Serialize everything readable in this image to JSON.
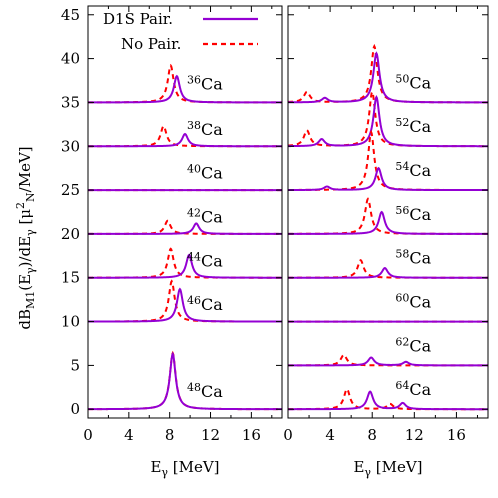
{
  "chart_data": [
    {
      "type": "line",
      "panel": "left",
      "xlabel_main": "E",
      "xlabel_sub": "γ",
      "xlabel_unit": " [MeV]",
      "ylabel": "dB_M1(E_γ)/dE_γ  [μ²_N/MeV]",
      "xlim": [
        0,
        19
      ],
      "ylim": [
        -1,
        46
      ],
      "x_ticks": [
        0,
        4,
        8,
        12,
        16
      ],
      "y_ticks": [
        0,
        5,
        10,
        15,
        20,
        25,
        30,
        35,
        40,
        45
      ],
      "legend": {
        "placement": "top-center",
        "entries": [
          "D1S Pair.",
          "No Pair."
        ]
      },
      "series_colors": {
        "pair": "#9400d3",
        "nopair": "#ff0000"
      },
      "isotopes": [
        {
          "mass": "36",
          "element": "Ca",
          "offset": 35,
          "label_pos": [
            9.7,
            36.5
          ],
          "pair_peaks": [
            [
              8.7,
              3.0
            ]
          ],
          "nopair_peaks": [
            [
              8.1,
              4.2
            ]
          ]
        },
        {
          "mass": "38",
          "element": "Ca",
          "offset": 30,
          "label_pos": [
            9.7,
            31.3
          ],
          "pair_peaks": [
            [
              9.5,
              1.4
            ]
          ],
          "nopair_peaks": [
            [
              7.4,
              2.3
            ]
          ]
        },
        {
          "mass": "40",
          "element": "Ca",
          "offset": 25,
          "label_pos": [
            9.7,
            26.3
          ],
          "pair_peaks": [],
          "nopair_peaks": []
        },
        {
          "mass": "42",
          "element": "Ca",
          "offset": 20,
          "label_pos": [
            9.7,
            21.3
          ],
          "pair_peaks": [
            [
              10.6,
              1.2
            ]
          ],
          "nopair_peaks": [
            [
              7.8,
              1.5
            ]
          ]
        },
        {
          "mass": "44",
          "element": "Ca",
          "offset": 15,
          "label_pos": [
            9.7,
            16.3
          ],
          "pair_peaks": [
            [
              9.9,
              2.6
            ]
          ],
          "nopair_peaks": [
            [
              8.1,
              3.3
            ]
          ]
        },
        {
          "mass": "46",
          "element": "Ca",
          "offset": 10,
          "label_pos": [
            9.7,
            11.3
          ],
          "pair_peaks": [
            [
              9.0,
              3.7
            ]
          ],
          "nopair_peaks": [
            [
              8.2,
              4.6
            ]
          ]
        },
        {
          "mass": "48",
          "element": "Ca",
          "offset": 0,
          "label_pos": [
            9.7,
            1.4
          ],
          "pair_peaks": [
            [
              8.3,
              6.3
            ]
          ],
          "nopair_peaks": [
            [
              8.3,
              6.4
            ]
          ]
        }
      ]
    },
    {
      "type": "line",
      "panel": "right",
      "xlabel_main": "E",
      "xlabel_sub": "γ",
      "xlabel_unit": " [MeV]",
      "xlim": [
        0,
        19
      ],
      "ylim": [
        -1,
        46
      ],
      "x_ticks": [
        0,
        4,
        8,
        12,
        16
      ],
      "series_colors": {
        "pair": "#9400d3",
        "nopair": "#ff0000"
      },
      "isotopes": [
        {
          "mass": "50",
          "element": "Ca",
          "offset": 35,
          "label_pos": [
            10.2,
            36.6
          ],
          "pair_peaks": [
            [
              8.4,
              5.6
            ],
            [
              3.5,
              0.5
            ]
          ],
          "nopair_peaks": [
            [
              8.2,
              6.4
            ],
            [
              1.8,
              1.2
            ]
          ]
        },
        {
          "mass": "52",
          "element": "Ca",
          "offset": 30,
          "label_pos": [
            10.2,
            31.6
          ],
          "pair_peaks": [
            [
              8.4,
              5.6
            ],
            [
              3.2,
              0.8
            ]
          ],
          "nopair_peaks": [
            [
              8.0,
              6.2
            ],
            [
              1.8,
              1.8
            ]
          ]
        },
        {
          "mass": "54",
          "element": "Ca",
          "offset": 25,
          "label_pos": [
            10.2,
            26.6
          ],
          "pair_peaks": [
            [
              8.6,
              2.5
            ],
            [
              3.7,
              0.4
            ]
          ],
          "nopair_peaks": [
            [
              7.9,
              6.6
            ]
          ]
        },
        {
          "mass": "56",
          "element": "Ca",
          "offset": 20,
          "label_pos": [
            10.2,
            21.6
          ],
          "pair_peaks": [
            [
              8.9,
              2.5
            ]
          ],
          "nopair_peaks": [
            [
              7.6,
              4.0
            ]
          ]
        },
        {
          "mass": "58",
          "element": "Ca",
          "offset": 15,
          "label_pos": [
            10.2,
            16.6
          ],
          "pair_peaks": [
            [
              9.2,
              1.1
            ]
          ],
          "nopair_peaks": [
            [
              6.9,
              2.0
            ]
          ]
        },
        {
          "mass": "60",
          "element": "Ca",
          "offset": 10,
          "label_pos": [
            10.2,
            11.6
          ],
          "pair_peaks": [],
          "nopair_peaks": []
        },
        {
          "mass": "62",
          "element": "Ca",
          "offset": 5,
          "label_pos": [
            10.2,
            6.6
          ],
          "pair_peaks": [
            [
              7.9,
              0.9
            ],
            [
              11.2,
              0.4
            ]
          ],
          "nopair_peaks": [
            [
              5.3,
              1.2
            ]
          ]
        },
        {
          "mass": "64",
          "element": "Ca",
          "offset": 0,
          "label_pos": [
            10.2,
            1.6
          ],
          "pair_peaks": [
            [
              7.8,
              2.0
            ],
            [
              10.9,
              0.7
            ]
          ],
          "nopair_peaks": [
            [
              5.6,
              2.3
            ],
            [
              9.7,
              0.6
            ]
          ]
        }
      ]
    }
  ]
}
